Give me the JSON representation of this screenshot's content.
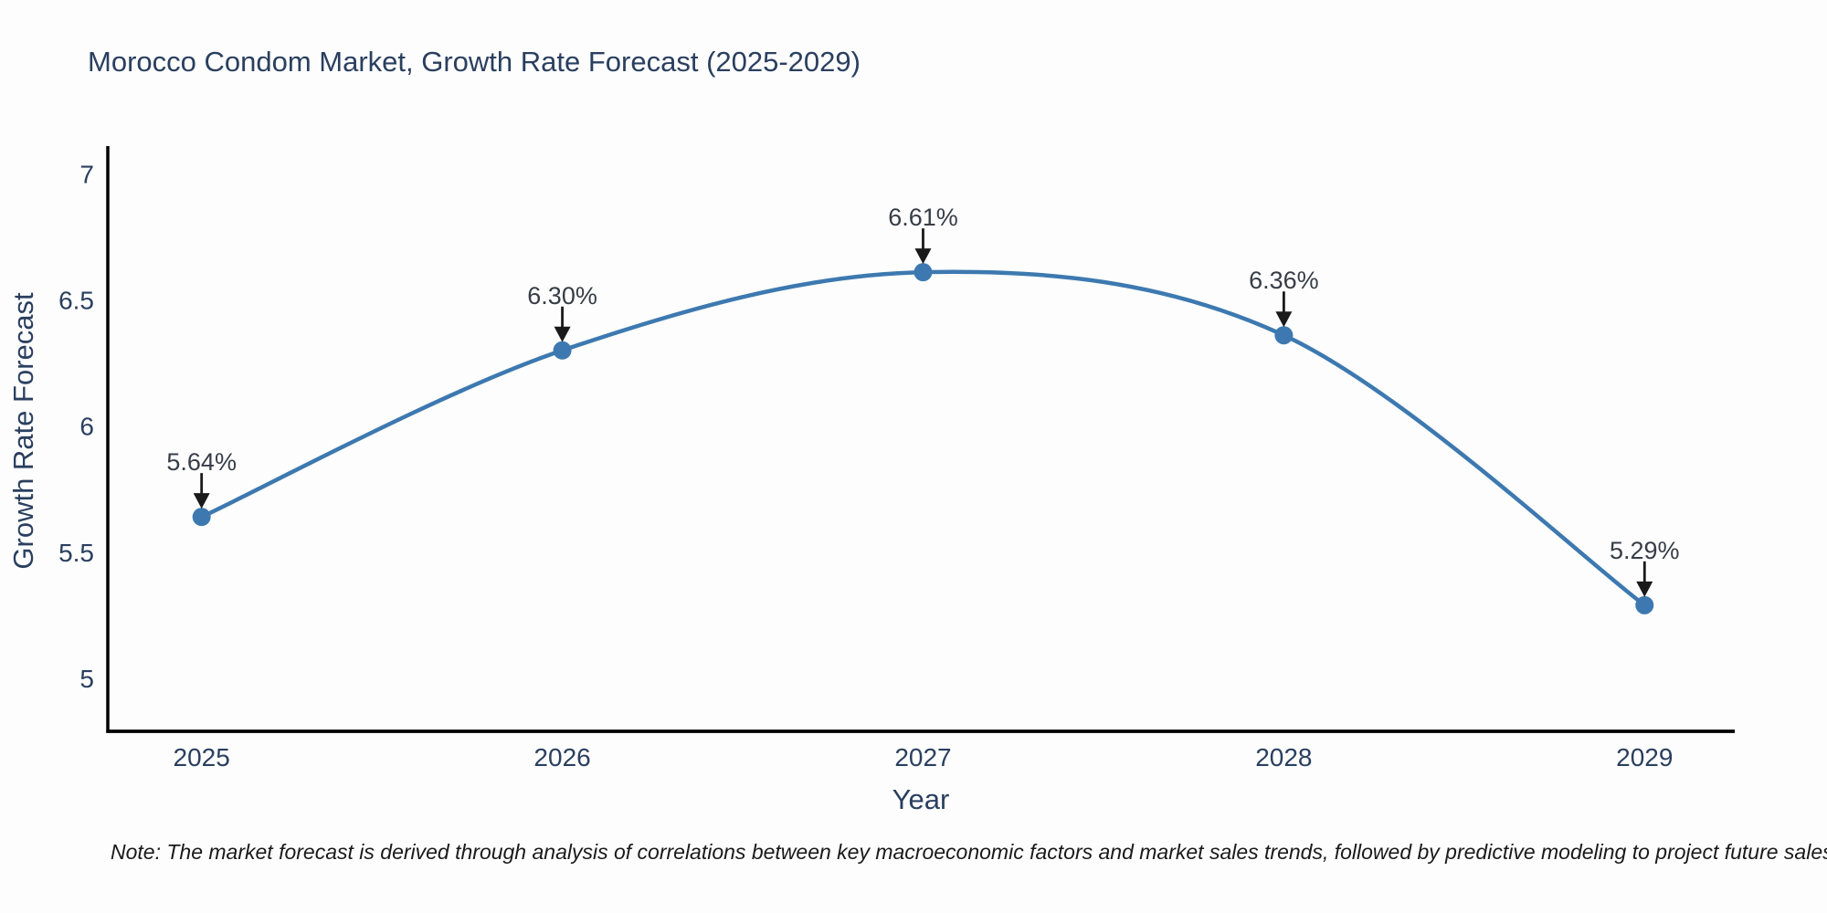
{
  "title": "Morocco Condom Market, Growth Rate Forecast (2025-2029)",
  "note": "Note: The market forecast is derived through analysis of correlations between key macroeconomic factors and market sales trends, followed by predictive modeling to project future sales",
  "colors": {
    "background": "#fdfdfd",
    "line": "#3d79b0",
    "marker": "#3d79b0",
    "axis": "#000000",
    "chart_text": "#2a3f5f",
    "annotation_text": "#363d47",
    "arrow": "#1a1a1a"
  },
  "chart_data": {
    "type": "line",
    "line_shape": "spline",
    "title": "Morocco Condom Market, Growth Rate Forecast (2025-2029)",
    "xlabel": "Year",
    "ylabel": "Growth Rate Forecast",
    "x": [
      2025,
      2026,
      2027,
      2028,
      2029
    ],
    "xtick_labels": [
      "2025",
      "2026",
      "2027",
      "2028",
      "2029"
    ],
    "series": [
      {
        "name": "Growth Rate Forecast",
        "values": [
          5.64,
          6.3,
          6.61,
          6.36,
          5.29
        ]
      }
    ],
    "point_labels": [
      "5.64%",
      "6.30%",
      "6.61%",
      "6.36%",
      "5.29%"
    ],
    "yticks": [
      5,
      5.5,
      6,
      6.5,
      7
    ],
    "ytick_labels": [
      "5",
      "5.5",
      "6",
      "6.5",
      "7"
    ],
    "xlim": [
      2024.74,
      2029.25
    ],
    "ylim": [
      4.79,
      7.11
    ],
    "grid": false,
    "legend": false,
    "markers": true
  }
}
